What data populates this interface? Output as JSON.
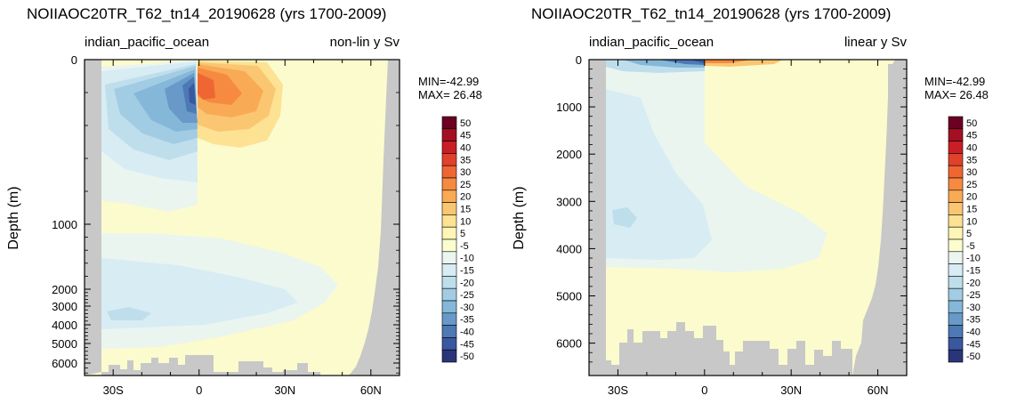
{
  "panels": [
    {
      "id": "nonlin",
      "title": "NOIIAOC20TR_T62_tn14_20190628 (yrs 1700-2009)",
      "left_subtitle": "indian_pacific_ocean",
      "right_subtitle": "non-lin y Sv",
      "ylabel": "Depth (m)",
      "min_label": "MIN=-42.99",
      "max_label": "MAX= 26.48"
    },
    {
      "id": "linear",
      "title": "NOIIAOC20TR_T62_tn14_20190628 (yrs 1700-2009)",
      "left_subtitle": "indian_pacific_ocean",
      "right_subtitle": "linear y Sv",
      "ylabel": "Depth (m)",
      "min_label": "MIN=-42.99",
      "max_label": "MAX= 26.48"
    }
  ],
  "chart_data": [
    {
      "type": "heatmap",
      "title": "NOIIAOC20TR_T62_tn14_20190628 (yrs 1700-2009)",
      "region": "indian_pacific_ocean",
      "y_scale": "non-linear",
      "units": "Sv",
      "ylabel": "Depth (m)",
      "x_ticks": [
        "30S",
        "0",
        "30N",
        "60N"
      ],
      "x_tick_values": [
        -30,
        0,
        30,
        60
      ],
      "xlim": [
        -40,
        70
      ],
      "y_ticks": [
        0,
        1000,
        2000,
        3000,
        4000,
        5000,
        6000
      ],
      "ylim": [
        0,
        6500
      ],
      "min": -42.99,
      "max": 26.48,
      "features": [
        {
          "kind": "cell",
          "sign": "negative",
          "lat_range": [
            -32,
            0
          ],
          "depth_range": [
            0,
            700
          ],
          "min_value": -42.99
        },
        {
          "kind": "cell",
          "sign": "positive",
          "lat_range": [
            0,
            27
          ],
          "depth_range": [
            0,
            500
          ],
          "max_value": 26.48
        },
        {
          "kind": "cell",
          "sign": "negative",
          "lat_range": [
            -32,
            20
          ],
          "depth_range": [
            2000,
            4500
          ],
          "min_value": -15
        }
      ]
    },
    {
      "type": "heatmap",
      "title": "NOIIAOC20TR_T62_tn14_20190628 (yrs 1700-2009)",
      "region": "indian_pacific_ocean",
      "y_scale": "linear",
      "units": "Sv",
      "ylabel": "Depth (m)",
      "x_ticks": [
        "30S",
        "0",
        "30N",
        "60N"
      ],
      "x_tick_values": [
        -30,
        0,
        30,
        60
      ],
      "xlim": [
        -40,
        70
      ],
      "y_ticks": [
        0,
        1000,
        2000,
        3000,
        4000,
        5000,
        6000
      ],
      "ylim": [
        0,
        6500
      ],
      "min": -42.99,
      "max": 26.48,
      "features": [
        {
          "kind": "cell",
          "sign": "negative",
          "lat_range": [
            -32,
            0
          ],
          "depth_range": [
            0,
            200
          ],
          "min_value": -42.99
        },
        {
          "kind": "cell",
          "sign": "positive",
          "lat_range": [
            0,
            20
          ],
          "depth_range": [
            0,
            150
          ],
          "max_value": 26.48
        },
        {
          "kind": "cell",
          "sign": "negative",
          "lat_range": [
            -32,
            20
          ],
          "depth_range": [
            1500,
            4800
          ],
          "min_value": -15
        }
      ]
    }
  ],
  "colorbar": {
    "labels": [
      "50",
      "45",
      "40",
      "35",
      "30",
      "25",
      "20",
      "15",
      "10",
      "5",
      "-5",
      "-10",
      "-15",
      "-20",
      "-25",
      "-30",
      "-35",
      "-40",
      "-45",
      "-50"
    ],
    "colors": [
      "#6a0022",
      "#a50f23",
      "#cb1d24",
      "#e0412c",
      "#ef6633",
      "#f58a40",
      "#f9aa55",
      "#fbc671",
      "#fde293",
      "#fef5b6",
      "#fbfdcf",
      "#ebf6f0",
      "#d8ecf4",
      "#bfdeec",
      "#a2cce3",
      "#85b7d8",
      "#6899c8",
      "#4d79b5",
      "#3a58a0",
      "#2a3479"
    ]
  }
}
